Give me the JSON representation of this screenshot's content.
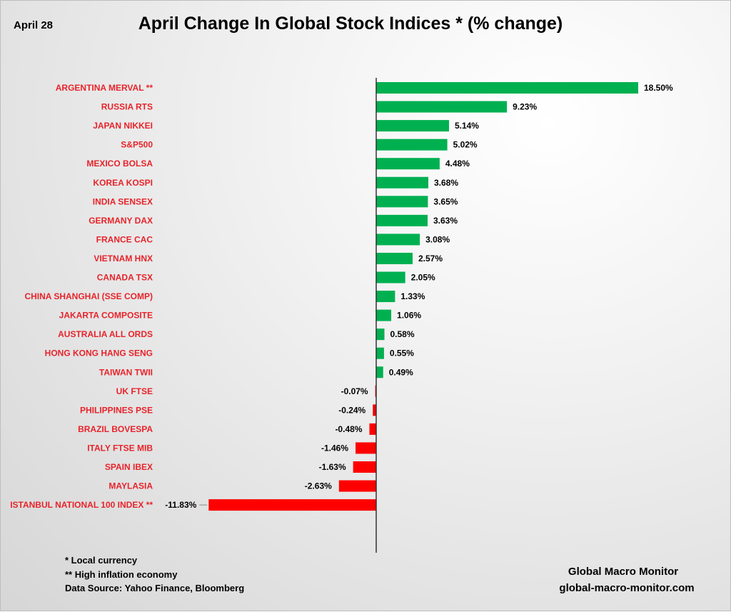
{
  "date_label": "April 28",
  "footnotes": [
    "* Local currency",
    "**  High inflation economy",
    "Data Source:  Yahoo Finance, Bloomberg"
  ],
  "branding": {
    "name": "Global Macro Monitor",
    "url": "global-macro-monitor.com"
  },
  "colors": {
    "positive": "#00b050",
    "negative": "#ff0000",
    "label": "#e8232a"
  },
  "chart_data": {
    "type": "bar",
    "orientation": "horizontal",
    "title": "April Change In Global Stock Indices * (% change)",
    "xlabel": "",
    "ylabel": "",
    "categories": [
      "ARGENTINA MERVAL **",
      "RUSSIA RTS",
      "JAPAN NIKKEI",
      "S&P500",
      "MEXICO BOLSA",
      "KOREA KOSPI",
      "INDIA SENSEX",
      "GERMANY DAX",
      "FRANCE CAC",
      "VIETNAM HNX",
      "CANADA TSX",
      "CHINA SHANGHAI (SSE COMP)",
      "JAKARTA COMPOSITE",
      "AUSTRALIA ALL ORDS",
      "HONG KONG HANG SENG",
      "TAIWAN  TWII",
      "UK FTSE",
      "PHILIPPINES PSE",
      "BRAZIL BOVESPA",
      "ITALY FTSE MIB",
      "SPAIN IBEX",
      "MAYLASIA",
      "ISTANBUL NATIONAL 100 INDEX **"
    ],
    "values": [
      18.5,
      9.23,
      5.14,
      5.02,
      4.48,
      3.68,
      3.65,
      3.63,
      3.08,
      2.57,
      2.05,
      1.33,
      1.06,
      0.58,
      0.55,
      0.49,
      -0.07,
      -0.24,
      -0.48,
      -1.46,
      -1.63,
      -2.63,
      -11.83
    ],
    "data_labels": [
      "18.50%",
      "9.23%",
      "5.14%",
      "5.02%",
      "4.48%",
      "3.68%",
      "3.65%",
      "3.63%",
      "3.08%",
      "2.57%",
      "2.05%",
      "1.33%",
      "1.06%",
      "0.58%",
      "0.55%",
      "0.49%",
      "-0.07%",
      "-0.24%",
      "-0.48%",
      "-1.46%",
      "-1.63%",
      "-2.63%",
      "-11.83%"
    ],
    "xlim": [
      -11.83,
      18.5
    ],
    "grid": false,
    "legend": "none"
  }
}
